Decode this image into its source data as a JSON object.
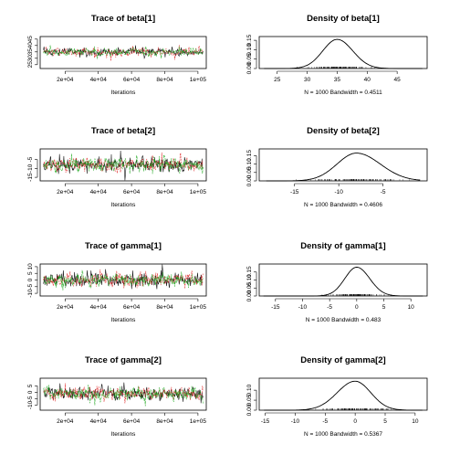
{
  "chart_data": [
    {
      "type": "line",
      "kind": "trace",
      "title": "Trace of beta[1]",
      "xlabel": "Iterations",
      "xlim": [
        5000,
        105000
      ],
      "ylim": [
        22,
        47
      ],
      "xticks": [
        20000,
        40000,
        60000,
        80000,
        100000
      ],
      "xtick_labels": [
        "2e+04",
        "4e+04",
        "6e+04",
        "8e+04",
        "1e+05"
      ],
      "yticks": [
        25,
        30,
        35,
        40,
        45
      ],
      "ytick_labels": [
        "25",
        "30",
        "35",
        "40",
        "45"
      ],
      "series": [
        {
          "color": "#000000"
        },
        {
          "color": "#dd2222"
        },
        {
          "color": "#22aa22"
        }
      ],
      "center": 35,
      "spread": 1.4,
      "spike": 4
    },
    {
      "type": "line",
      "kind": "density",
      "title": "Density of beta[1]",
      "xlabel": "N = 1000   Bandwidth = 0.4511",
      "xlim": [
        22,
        50
      ],
      "ylim": [
        0,
        0.17
      ],
      "xticks": [
        25,
        30,
        35,
        40,
        45
      ],
      "xtick_labels": [
        "25",
        "30",
        "35",
        "40",
        "45"
      ],
      "yticks": [
        0,
        0.05,
        0.1,
        0.15
      ],
      "ytick_labels": [
        "0.00",
        "0.05",
        "0.10",
        "0.15"
      ],
      "peak_x": 35,
      "peak_y": 0.155,
      "sd_left": 2.4,
      "sd_right": 2.6,
      "rug_range": [
        28,
        43
      ]
    },
    {
      "type": "line",
      "kind": "trace",
      "title": "Trace of beta[2]",
      "xlabel": "Iterations",
      "xlim": [
        5000,
        105000
      ],
      "ylim": [
        -17,
        1
      ],
      "xticks": [
        20000,
        40000,
        60000,
        80000,
        100000
      ],
      "xtick_labels": [
        "2e+04",
        "4e+04",
        "6e+04",
        "8e+04",
        "1e+05"
      ],
      "yticks": [
        -15,
        -10,
        -5
      ],
      "ytick_labels": [
        "-15",
        "-10",
        "-5"
      ],
      "series": [
        {
          "color": "#000000"
        },
        {
          "color": "#dd2222"
        },
        {
          "color": "#22aa22"
        }
      ],
      "center": -8,
      "spread": 1.7,
      "spike": 5
    },
    {
      "type": "line",
      "kind": "density",
      "title": "Density of beta[2]",
      "xlabel": "N = 1000   Bandwidth = 0.4606",
      "xlim": [
        -19,
        0
      ],
      "ylim": [
        0,
        0.19
      ],
      "xticks": [
        -15,
        -10,
        -5
      ],
      "xtick_labels": [
        "-15",
        "-10",
        "-5"
      ],
      "yticks": [
        0,
        0.05,
        0.1,
        0.15
      ],
      "ytick_labels": [
        "0.00",
        "0.05",
        "0.10",
        "0.15"
      ],
      "peak_x": -8,
      "peak_y": 0.165,
      "sd_left": 2.2,
      "sd_right": 2.7,
      "rug_range": [
        -16,
        -1
      ]
    },
    {
      "type": "line",
      "kind": "trace",
      "title": "Trace of gamma[1]",
      "xlabel": "Iterations",
      "xlim": [
        5000,
        105000
      ],
      "ylim": [
        -12,
        12
      ],
      "xticks": [
        20000,
        40000,
        60000,
        80000,
        100000
      ],
      "xtick_labels": [
        "2e+04",
        "4e+04",
        "6e+04",
        "8e+04",
        "1e+05"
      ],
      "yticks": [
        -10,
        -5,
        0,
        5,
        10
      ],
      "ytick_labels": [
        "-10",
        "-5",
        "0",
        "5",
        "10"
      ],
      "series": [
        {
          "color": "#000000"
        },
        {
          "color": "#dd2222"
        },
        {
          "color": "#22aa22"
        }
      ],
      "center": 0,
      "spread": 2.2,
      "spike": 6
    },
    {
      "type": "line",
      "kind": "density",
      "title": "Density of gamma[1]",
      "xlabel": "N = 1000   Bandwidth = 0.483",
      "xlim": [
        -18,
        13
      ],
      "ylim": [
        0,
        0.2
      ],
      "xticks": [
        -15,
        -10,
        -5,
        0,
        5,
        10
      ],
      "xtick_labels": [
        "-15",
        "-10",
        "-5",
        "0",
        "5",
        "10"
      ],
      "yticks": [
        0,
        0.05,
        0.1,
        0.15
      ],
      "ytick_labels": [
        "0.00",
        "0.05",
        "0.10",
        "0.15"
      ],
      "peak_x": 0,
      "peak_y": 0.18,
      "sd_left": 2.2,
      "sd_right": 2.4,
      "rug_range": [
        -10,
        8
      ]
    },
    {
      "type": "line",
      "kind": "trace",
      "title": "Trace of gamma[2]",
      "xlabel": "Iterations",
      "xlim": [
        5000,
        105000
      ],
      "ylim": [
        -14,
        11
      ],
      "xticks": [
        20000,
        40000,
        60000,
        80000,
        100000
      ],
      "xtick_labels": [
        "2e+04",
        "4e+04",
        "6e+04",
        "8e+04",
        "1e+05"
      ],
      "yticks": [
        -10,
        -5,
        0,
        5
      ],
      "ytick_labels": [
        "-10",
        "-5",
        "0",
        "5"
      ],
      "series": [
        {
          "color": "#000000"
        },
        {
          "color": "#dd2222"
        },
        {
          "color": "#22aa22"
        }
      ],
      "center": -1,
      "spread": 2.3,
      "spike": 6
    },
    {
      "type": "line",
      "kind": "density",
      "title": "Density of gamma[2]",
      "xlabel": "N = 1000   Bandwidth = 0.5367",
      "xlim": [
        -16,
        12
      ],
      "ylim": [
        0,
        0.16
      ],
      "xticks": [
        -15,
        -10,
        -5,
        0,
        5,
        10
      ],
      "xtick_labels": [
        "-15",
        "-10",
        "-5",
        "0",
        "5",
        "10"
      ],
      "yticks": [
        0,
        0.05,
        0.1
      ],
      "ytick_labels": [
        "0.00",
        "0.05",
        "0.10"
      ],
      "peak_x": 0,
      "peak_y": 0.145,
      "sd_left": 3.0,
      "sd_right": 2.6,
      "rug_range": [
        -11,
        7
      ]
    }
  ]
}
